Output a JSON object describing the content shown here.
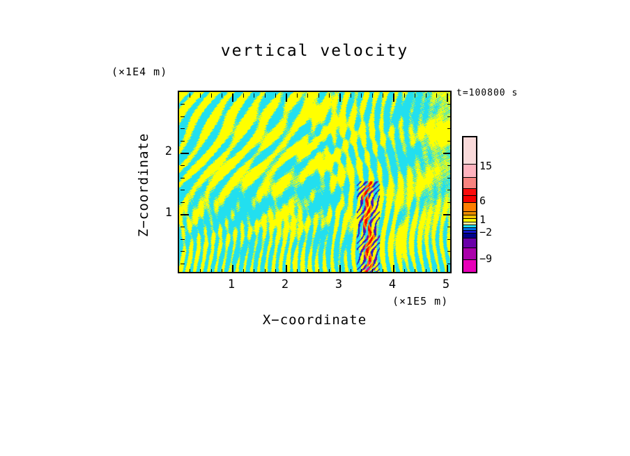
{
  "title": "vertical velocity",
  "annotations": {
    "time": "t=100800 s"
  },
  "x_axis": {
    "label": "X−coordinate",
    "unit": "(×1E5 m)",
    "major_ticks": [
      1,
      2,
      3,
      4,
      5
    ],
    "minor_tick_interval": 0.2,
    "range": [
      0,
      5.1
    ]
  },
  "y_axis": {
    "label": "Z−coordinate",
    "unit": "(×1E4 m)",
    "major_ticks": [
      1,
      2
    ],
    "minor_tick_interval": 0.2,
    "range": [
      0,
      3.0
    ]
  },
  "colorbar": {
    "tick_labels": [
      "15",
      "6",
      "1",
      "−2",
      "−9"
    ],
    "segments": [
      {
        "color": "#fadada",
        "h": 38
      },
      {
        "color": "#ffb3be",
        "h": 19
      },
      {
        "color": "#f8837f",
        "h": 16
      },
      {
        "color": "#fb0d0d",
        "h": 10
      },
      {
        "color": "#f70000",
        "h": 10
      },
      {
        "color": "#ff7e00",
        "h": 13
      },
      {
        "color": "#e88a00",
        "h": 5
      },
      {
        "color": "#ffc400",
        "h": 5
      },
      {
        "color": "#ffff00",
        "h": 5
      },
      {
        "color": "#ffff9e",
        "h": 4
      },
      {
        "color": "#22dfef",
        "h": 4
      },
      {
        "color": "#0070e8",
        "h": 4
      },
      {
        "color": "#1515ce",
        "h": 4
      },
      {
        "color": "#00008b",
        "h": 7
      },
      {
        "color": "#6a00a8",
        "h": 14
      },
      {
        "color": "#aa00aa",
        "h": 17
      },
      {
        "color": "#e800b8",
        "h": 18
      }
    ]
  },
  "field": {
    "positive_color": "#ffff00",
    "negative_color": "#22dfef",
    "streak_colors": {
      "red": "#f60400",
      "orange": "#ff7e00",
      "blue": "#2020ce",
      "purple": "#7a00a8",
      "magenta": "#dd00aa"
    }
  },
  "chart_data": {
    "type": "heatmap",
    "title": "vertical velocity",
    "xlabel": "X−coordinate (×1E5 m)",
    "ylabel": "Z−coordinate (×1E4 m)",
    "time_annotation": "t=100800 s",
    "x_range_1e5_m": [
      0,
      5.1
    ],
    "z_range_1e4_m": [
      0,
      3.0
    ],
    "labeled_contour_levels": [
      -9,
      -2,
      1,
      6,
      15
    ],
    "colorbar_colors_top_to_bottom": [
      "#fadada",
      "#ffb3be",
      "#f8837f",
      "#fb0d0d",
      "#f70000",
      "#ff7e00",
      "#e88a00",
      "#ffc400",
      "#ffff00",
      "#ffff9e",
      "#22dfef",
      "#0070e8",
      "#1515ce",
      "#00008b",
      "#6a00a8",
      "#aa00aa",
      "#e800b8"
    ],
    "field_description": "Wavy interleaved filled contours: weak positive vertical velocity (yellow) and weak negative (cyan) fill the whole domain; diagonal gravity-wave striations in upper left, blobby cells in upper right, fine vertical striations near the bottom boundary.",
    "intense_feature": {
      "x_center_1e5_m": 3.5,
      "z_extent_1e4_m": [
        0,
        1.4
      ],
      "description": "Narrow column of intense alternating updrafts/downdrafts: red/orange cores flanked by dark blue, purple and magenta streaks"
    },
    "legend_position": "right",
    "grid": false
  }
}
